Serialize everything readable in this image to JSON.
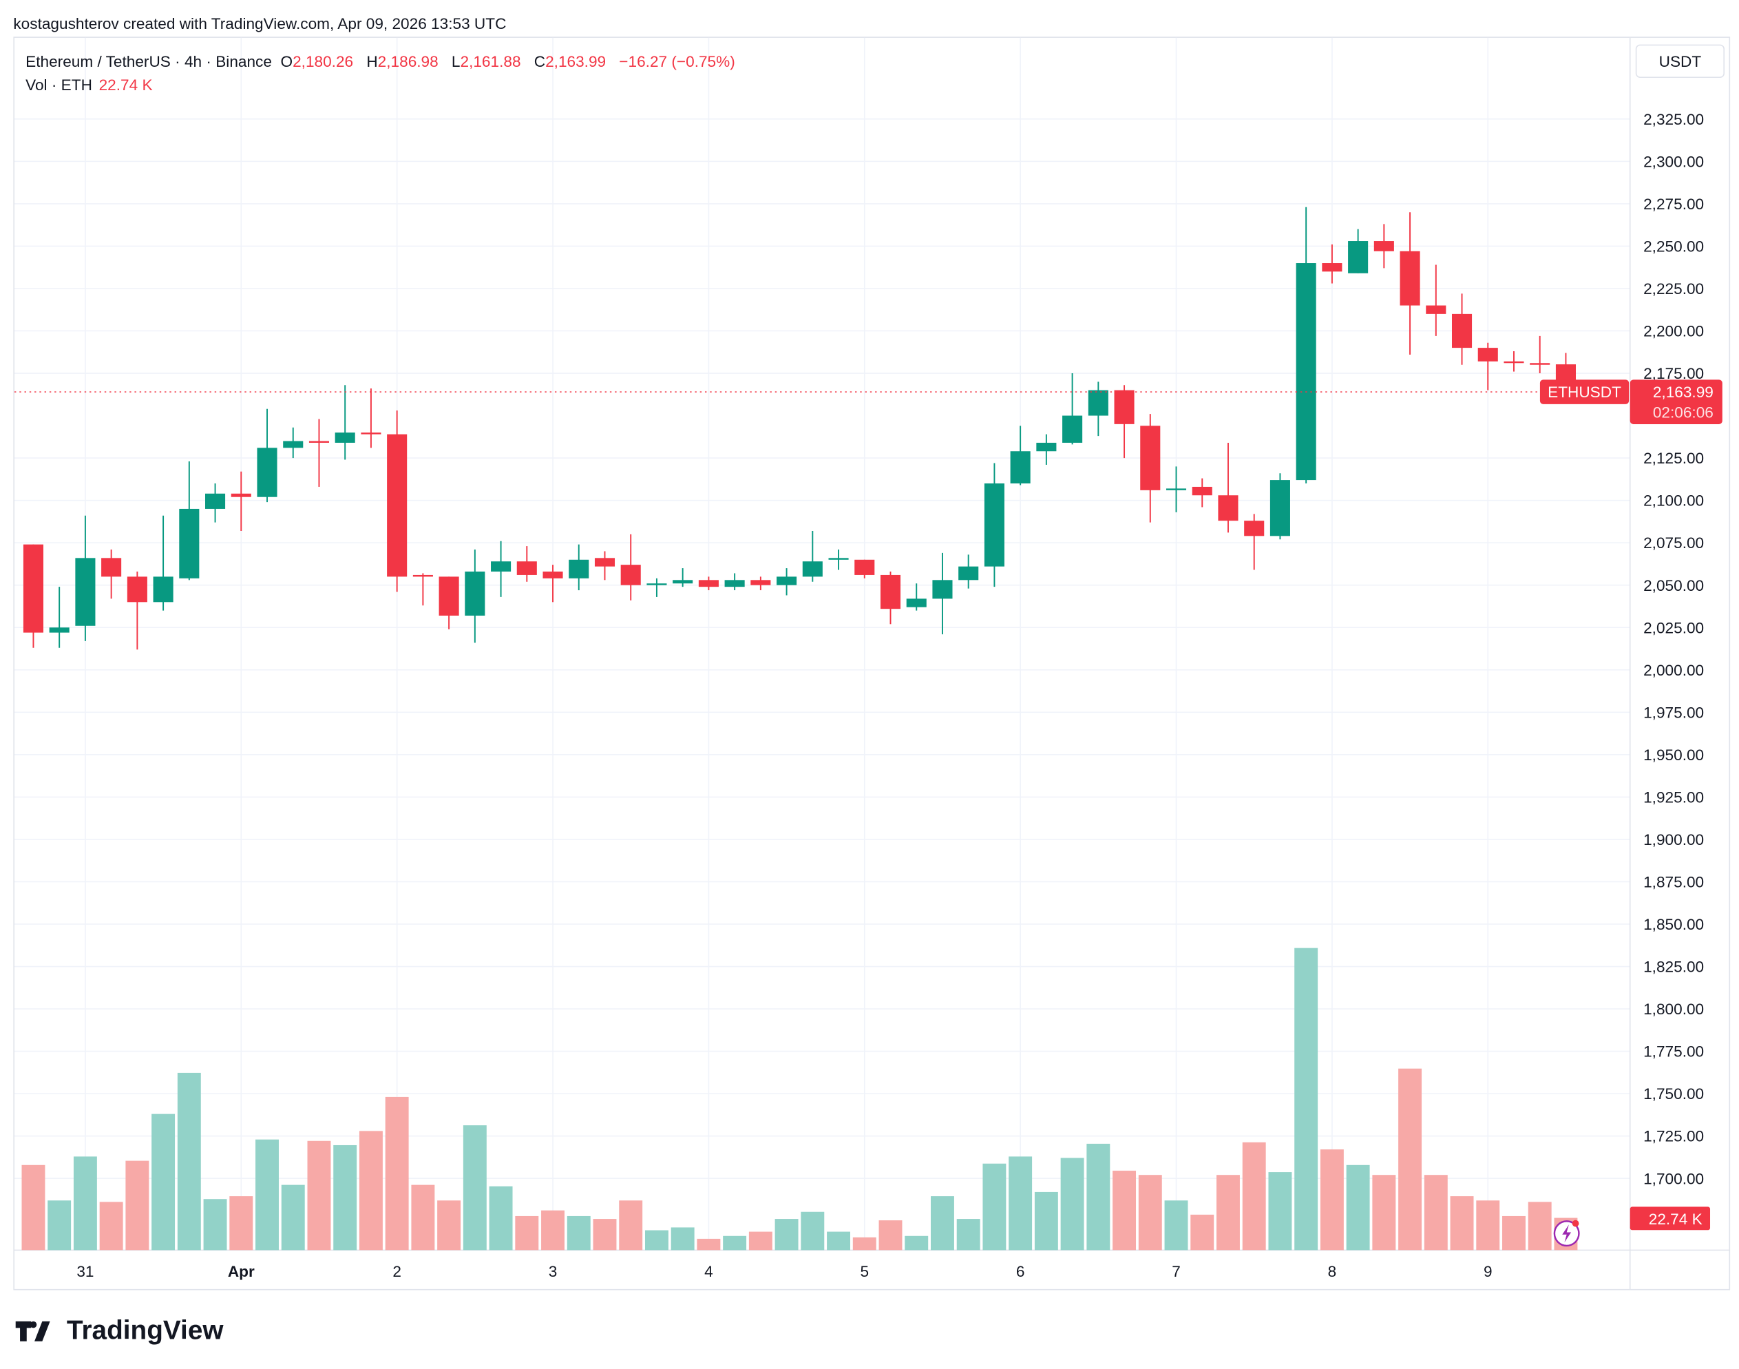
{
  "credit": "kostagushterov created with TradingView.com, Apr 09, 2026 13:53 UTC",
  "legend": {
    "symbol": "Ethereum / TetherUS · 4h · Binance",
    "open_label": "O",
    "open": "2,180.26",
    "high_label": "H",
    "high": "2,186.98",
    "low_label": "L",
    "low": "2,161.88",
    "close_label": "C",
    "close": "2,163.99",
    "change": "−16.27 (−0.75%)",
    "volume_label": "Vol · ETH",
    "volume": "22.74 K"
  },
  "currency_button": "USDT",
  "price_label": {
    "symbol": "ETHUSDT",
    "price": "2,163.99",
    "countdown": "02:06:06"
  },
  "volume_label": "22.74 K",
  "brand": "TradingView",
  "colors": {
    "up": "#089981",
    "down": "#f23645",
    "up_volume": "#92d2c8",
    "down_volume": "#f7a9a7",
    "grid": "#f0f3fa"
  },
  "chart_data": {
    "type": "candlestick",
    "interval": "4h",
    "ylim": [
      1675,
      2350
    ],
    "y_ticks": [
      2325,
      2300,
      2275,
      2250,
      2225,
      2200,
      2175,
      2125,
      2100,
      2075,
      2050,
      2025,
      2000,
      1975,
      1950,
      1925,
      1900,
      1875,
      1850,
      1825,
      1800,
      1775,
      1750,
      1725,
      1700
    ],
    "y_tick_labels": [
      "2,325.00",
      "2,300.00",
      "2,275.00",
      "2,250.00",
      "2,225.00",
      "2,200.00",
      "2,175.00",
      "2,125.00",
      "2,100.00",
      "2,075.00",
      "2,050.00",
      "2,025.00",
      "2,000.00",
      "1,975.00",
      "1,950.00",
      "1,925.00",
      "1,900.00",
      "1,875.00",
      "1,850.00",
      "1,825.00",
      "1,800.00",
      "1,775.00",
      "1,750.00",
      "1,725.00",
      "1,700.00"
    ],
    "x_tick_labels": [
      {
        "label": "31",
        "index": 2
      },
      {
        "label": "Apr",
        "index": 8
      },
      {
        "label": "2",
        "index": 14
      },
      {
        "label": "3",
        "index": 20
      },
      {
        "label": "4",
        "index": 26
      },
      {
        "label": "5",
        "index": 32
      },
      {
        "label": "6",
        "index": 38
      },
      {
        "label": "7",
        "index": 44
      },
      {
        "label": "8",
        "index": 50
      },
      {
        "label": "9",
        "index": 56
      }
    ],
    "last_price": 2163.99,
    "volume_unit": "K ETH",
    "candles": [
      [
        2074,
        2074,
        2013,
        2022,
        60
      ],
      [
        2022,
        2049,
        2013,
        2025,
        35
      ],
      [
        2026,
        2091,
        2017,
        2066,
        66
      ],
      [
        2066,
        2071,
        2042,
        2055,
        34
      ],
      [
        2055,
        2058,
        2012,
        2040,
        63
      ],
      [
        2040,
        2091,
        2035,
        2055,
        96
      ],
      [
        2054,
        2123,
        2053,
        2095,
        125
      ],
      [
        2095,
        2110,
        2087,
        2104,
        36
      ],
      [
        2104,
        2117,
        2082,
        2102,
        38
      ],
      [
        2102,
        2154,
        2099,
        2131,
        78
      ],
      [
        2131,
        2143,
        2125,
        2135,
        46
      ],
      [
        2135,
        2148,
        2108,
        2134,
        77
      ],
      [
        2134,
        2168,
        2124,
        2140,
        74
      ],
      [
        2140,
        2166,
        2131,
        2139,
        84
      ],
      [
        2139,
        2153,
        2046,
        2055,
        108
      ],
      [
        2056,
        2057,
        2038,
        2055,
        46
      ],
      [
        2055,
        2055,
        2024,
        2032,
        35
      ],
      [
        2032,
        2071,
        2016,
        2058,
        88
      ],
      [
        2058,
        2076,
        2043,
        2064,
        45
      ],
      [
        2064,
        2073,
        2052,
        2056,
        24
      ],
      [
        2058,
        2062,
        2040,
        2054,
        28
      ],
      [
        2054,
        2074,
        2047,
        2065,
        24
      ],
      [
        2066,
        2070,
        2053,
        2061,
        22
      ],
      [
        2062,
        2080,
        2041,
        2050,
        35
      ],
      [
        2050,
        2054,
        2043,
        2051,
        14
      ],
      [
        2051,
        2060,
        2049,
        2053,
        16
      ],
      [
        2053,
        2055,
        2047,
        2049,
        8
      ],
      [
        2049,
        2057,
        2047,
        2053,
        10
      ],
      [
        2053,
        2055,
        2047,
        2050,
        13
      ],
      [
        2050,
        2060,
        2044,
        2055,
        22
      ],
      [
        2055,
        2082,
        2052,
        2064,
        27
      ],
      [
        2065,
        2071,
        2059,
        2066,
        13
      ],
      [
        2065,
        2065,
        2054,
        2056,
        9
      ],
      [
        2056,
        2058,
        2027,
        2036,
        21
      ],
      [
        2037,
        2051,
        2035,
        2042,
        10
      ],
      [
        2042,
        2069,
        2021,
        2053,
        38
      ],
      [
        2053,
        2068,
        2048,
        2061,
        22
      ],
      [
        2061,
        2122,
        2049,
        2110,
        61
      ],
      [
        2110,
        2144,
        2109,
        2129,
        66
      ],
      [
        2129,
        2139,
        2121,
        2134,
        41
      ],
      [
        2134,
        2175,
        2133,
        2150,
        65
      ],
      [
        2150,
        2170,
        2138,
        2165,
        75
      ],
      [
        2165,
        2168,
        2125,
        2145,
        56
      ],
      [
        2144,
        2151,
        2087,
        2106,
        53
      ],
      [
        2106,
        2120,
        2093,
        2107,
        35
      ],
      [
        2108,
        2113,
        2096,
        2103,
        25
      ],
      [
        2103,
        2134,
        2081,
        2088,
        53
      ],
      [
        2088,
        2092,
        2059,
        2079,
        76
      ],
      [
        2079,
        2116,
        2077,
        2112,
        55
      ],
      [
        2112,
        2273,
        2110,
        2240,
        213
      ],
      [
        2240,
        2251,
        2228,
        2235,
        71
      ],
      [
        2234,
        2260,
        2234,
        2253,
        60
      ],
      [
        2253,
        2263,
        2237,
        2247,
        53
      ],
      [
        2247,
        2270,
        2186,
        2215,
        128
      ],
      [
        2215,
        2239,
        2197,
        2210,
        53
      ],
      [
        2210,
        2222,
        2180,
        2190,
        38
      ],
      [
        2190,
        2193,
        2165,
        2182,
        35
      ],
      [
        2182,
        2188,
        2176,
        2181,
        24
      ],
      [
        2181,
        2197,
        2175,
        2180,
        34
      ],
      [
        2180.26,
        2186.98,
        2161.88,
        2163.99,
        22.74
      ]
    ]
  }
}
